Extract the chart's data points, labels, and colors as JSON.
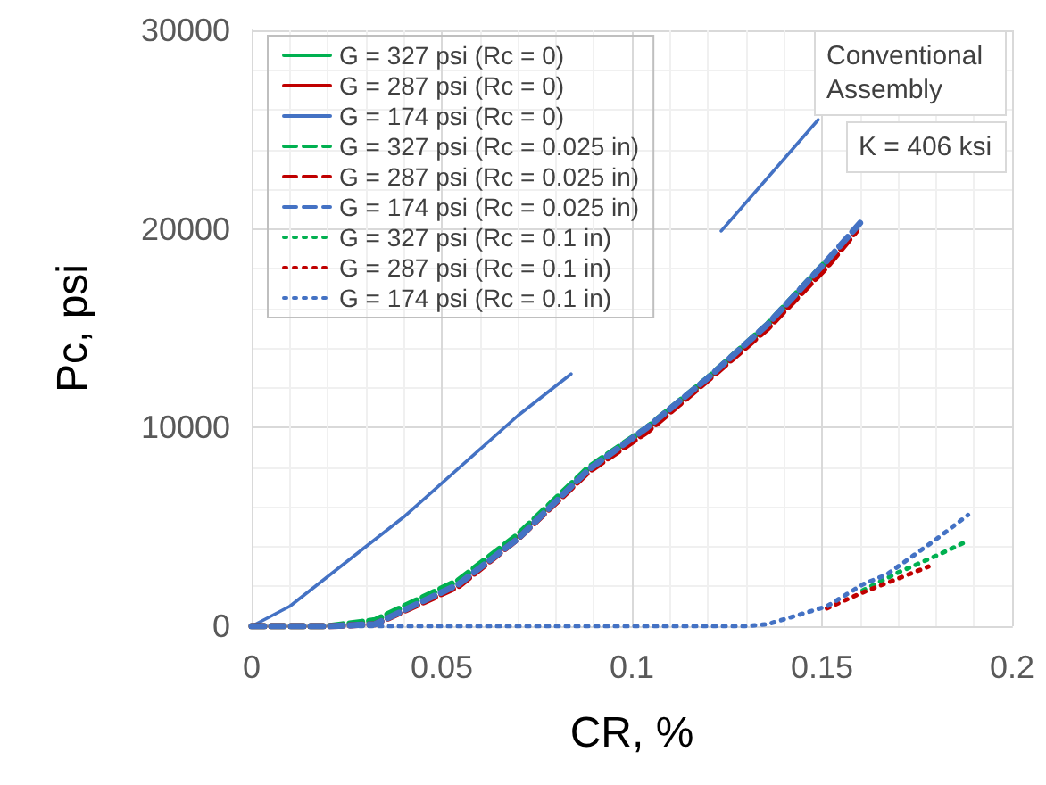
{
  "chart_data": {
    "type": "line",
    "xlabel": "CR, %",
    "ylabel": "Pc, psi",
    "xlim": [
      0,
      0.2
    ],
    "xticks": [
      0,
      0.05,
      0.1,
      0.15,
      0.2
    ],
    "ylim": [
      0,
      30000
    ],
    "yticks": [
      0,
      10000,
      20000,
      30000
    ],
    "grid": true,
    "legend": "top left",
    "marker": "none",
    "annotations": [
      "Conventional Assembly",
      "K = 406 ksi"
    ],
    "series": [
      {
        "name": "G = 327 psi (Rc = 0)",
        "color": "#00b050",
        "line_style": "solid"
      },
      {
        "name": "G = 287 psi (Rc = 0)",
        "color": "#c00000",
        "line_style": "solid"
      },
      {
        "name": "G = 174 psi (Rc = 0)",
        "color": "#4472c4",
        "line_style": "solid",
        "x": [
          0,
          0.01,
          0.04,
          0.07,
          0.084,
          0.1,
          0.1235,
          0.149
        ],
        "values": [
          0,
          1000,
          5500,
          10600,
          12700,
          null,
          19900,
          25500
        ]
      },
      {
        "name": "G = 327 psi (Rc = 0.025 in)",
        "color": "#00b050",
        "line_style": "dashed",
        "x": [
          0,
          0.02,
          0.0324,
          0.0543,
          0.07,
          0.0887,
          0.104,
          0.12,
          0.1357,
          0.1513
        ],
        "values": [
          0,
          0,
          300,
          2300,
          4600,
          8000,
          10000,
          12500,
          15200,
          18400
        ]
      },
      {
        "name": "G = 287 psi (Rc = 0.025 in)",
        "color": "#c00000",
        "line_style": "dashed",
        "x": [
          0,
          0.02,
          0.0324,
          0.0543,
          0.07,
          0.0887,
          0.104,
          0.12,
          0.1357,
          0.1513,
          0.159
        ],
        "values": [
          0,
          0,
          100,
          2000,
          4400,
          7800,
          9800,
          12400,
          15000,
          18100,
          19900
        ]
      },
      {
        "name": "G = 174 psi (Rc = 0.025 in)",
        "color": "#4472c4",
        "line_style": "dashed",
        "x": [
          0,
          0.02,
          0.0324,
          0.0543,
          0.07,
          0.0887,
          0.104,
          0.12,
          0.1357,
          0.1513,
          0.16
        ],
        "values": [
          0,
          0,
          100,
          2100,
          4400,
          7900,
          10000,
          12500,
          15200,
          18400,
          20300
        ]
      },
      {
        "name": "G = 327 psi (Rc = 0.1 in)",
        "color": "#00b050",
        "line_style": "dotted",
        "x": [
          0.1607,
          0.17,
          0.1795,
          0.184,
          0.1884
        ],
        "values": [
          1800,
          2700,
          3500,
          3900,
          4300
        ]
      },
      {
        "name": "G = 287 psi (Rc = 0.1 in)",
        "color": "#c00000",
        "line_style": "dotted",
        "x": [
          0.1513,
          0.1607,
          0.17,
          0.178
        ],
        "values": [
          900,
          1700,
          2400,
          3000
        ]
      },
      {
        "name": "G = 174 psi (Rc = 0.1 in)",
        "color": "#4472c4",
        "line_style": "dotted",
        "x": [
          0,
          0.13,
          0.1357,
          0.1513,
          0.1607,
          0.167,
          0.1795,
          0.1884
        ],
        "values": [
          0,
          0,
          100,
          1000,
          2100,
          2600,
          4300,
          5600
        ]
      }
    ]
  }
}
